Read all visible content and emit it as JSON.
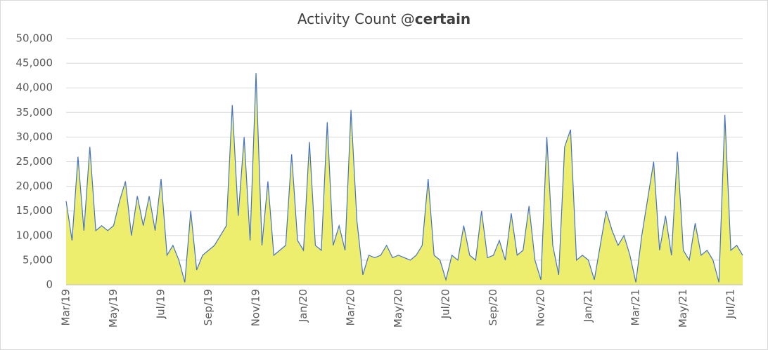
{
  "chart_data": {
    "type": "area-line",
    "title": "Activity Count @",
    "title_bold": "certain",
    "line_color": "#4472c4",
    "fill_color": "#eeee6e",
    "grid": true,
    "ylim": [
      0,
      50000
    ],
    "yticks": [
      0,
      {
        "value": 5000,
        "label": "5,000"
      },
      {
        "value": 10000,
        "label": "10,000"
      },
      {
        "value": 15000,
        "label": "15,000"
      },
      {
        "value": 20000,
        "label": "20,000"
      },
      {
        "value": 25000,
        "label": "25,000"
      },
      {
        "value": 30000,
        "label": "30,000"
      },
      {
        "value": 35000,
        "label": "35,000"
      },
      {
        "value": 40000,
        "label": "40,000"
      },
      {
        "value": 45000,
        "label": "45,000"
      },
      {
        "value": 50000,
        "label": "50,000"
      }
    ],
    "categories": [
      "Mar/19",
      null,
      null,
      null,
      null,
      null,
      null,
      null,
      "May/19",
      null,
      null,
      null,
      null,
      null,
      null,
      null,
      "Jul/19",
      null,
      null,
      null,
      null,
      null,
      null,
      null,
      "Sep/19",
      null,
      null,
      null,
      null,
      null,
      null,
      null,
      "Nov/19",
      null,
      null,
      null,
      null,
      null,
      null,
      null,
      "Jan/20",
      null,
      null,
      null,
      null,
      null,
      null,
      null,
      "Mar/20",
      null,
      null,
      null,
      null,
      null,
      null,
      null,
      "May/20",
      null,
      null,
      null,
      null,
      null,
      null,
      null,
      "Jul/20",
      null,
      null,
      null,
      null,
      null,
      null,
      null,
      "Sep/20",
      null,
      null,
      null,
      null,
      null,
      null,
      null,
      "Nov/20",
      null,
      null,
      null,
      null,
      null,
      null,
      null,
      "Jan/21",
      null,
      null,
      null,
      null,
      null,
      null,
      null,
      "Mar/21",
      null,
      null,
      null,
      null,
      null,
      null,
      null,
      "May/21",
      null,
      null,
      null,
      null,
      null,
      null,
      null,
      "Jul/21",
      null,
      null
    ],
    "values": [
      17000,
      9000,
      26000,
      11000,
      28000,
      11000,
      12000,
      11000,
      12000,
      17000,
      21000,
      10000,
      18000,
      12000,
      18000,
      11000,
      21500,
      6000,
      8000,
      5000,
      500,
      15000,
      3000,
      6000,
      7000,
      8000,
      10000,
      12000,
      36500,
      14000,
      30000,
      9000,
      43000,
      8000,
      21000,
      6000,
      7000,
      8000,
      26500,
      9000,
      7000,
      29000,
      8000,
      7000,
      33000,
      8000,
      12000,
      7000,
      35500,
      13000,
      2000,
      6000,
      5500,
      6000,
      8000,
      5500,
      6000,
      5500,
      5000,
      6000,
      8000,
      21500,
      6000,
      5000,
      1000,
      6000,
      5000,
      12000,
      6000,
      5000,
      15000,
      5500,
      6000,
      9000,
      5000,
      14500,
      6000,
      7000,
      16000,
      5000,
      1000,
      30000,
      8000,
      2000,
      28000,
      31500,
      5000,
      6000,
      5000,
      1000,
      8000,
      15000,
      11000,
      8000,
      10000,
      6000,
      500,
      10000,
      17500,
      25000,
      7000,
      14000,
      6000,
      27000,
      7000,
      5000,
      12500,
      6000,
      7000,
      5000,
      500,
      34500,
      7000,
      8000,
      6000
    ]
  }
}
